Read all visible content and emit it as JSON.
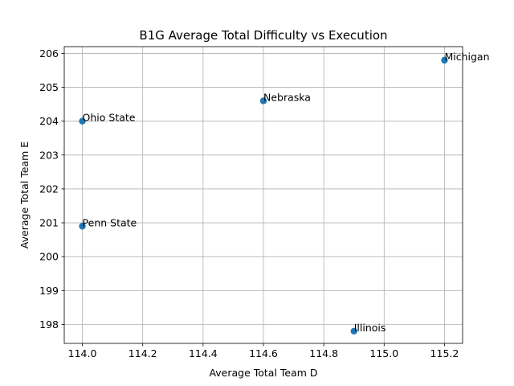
{
  "chart_data": {
    "type": "scatter",
    "title": "B1G Average Total Difficulty vs Execution",
    "xlabel": "Average Total Team D",
    "ylabel": "Average Total Team E",
    "xlim": [
      113.94,
      115.26
    ],
    "ylim": [
      197.44,
      206.2
    ],
    "xticks": [
      114.0,
      114.2,
      114.4,
      114.6,
      114.8,
      115.0,
      115.2
    ],
    "yticks": [
      198,
      199,
      200,
      201,
      202,
      203,
      204,
      205,
      206
    ],
    "grid": true,
    "marker_color": "#1f77b4",
    "points": [
      {
        "label": "Ohio State",
        "x": 114.0,
        "y": 204.0
      },
      {
        "label": "Penn State",
        "x": 114.0,
        "y": 200.9
      },
      {
        "label": "Nebraska",
        "x": 114.6,
        "y": 204.6
      },
      {
        "label": "Illinois",
        "x": 114.9,
        "y": 197.8
      },
      {
        "label": "Michigan",
        "x": 115.2,
        "y": 205.8
      }
    ]
  }
}
